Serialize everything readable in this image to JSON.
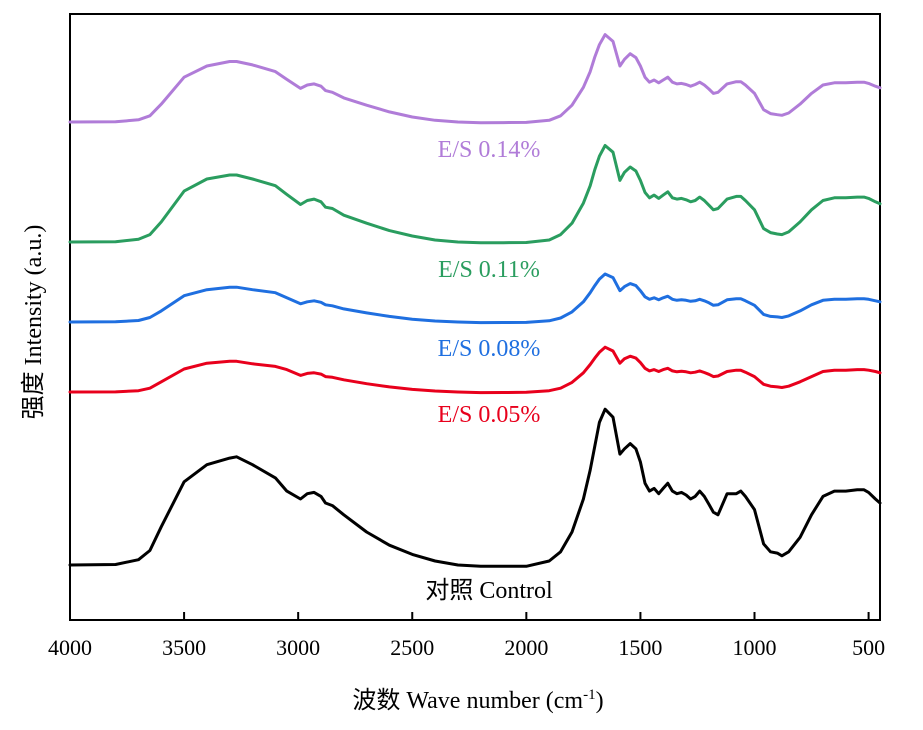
{
  "chart_data": {
    "type": "line",
    "xlabel": "波数 Wave number (cm",
    "xlabel_sup": "-1",
    "xlabel_suffix": ")",
    "ylabel": "强度 Intensity (a.u.)",
    "xlim": [
      4000,
      450
    ],
    "x_reversed": true,
    "y_ticks_shown": false,
    "grid": false,
    "legend": "inline labels above each trace",
    "x_ticks": [
      4000,
      3500,
      3000,
      2500,
      2000,
      1500,
      1000,
      500
    ],
    "x": [
      4000,
      3800,
      3700,
      3650,
      3600,
      3500,
      3400,
      3300,
      3270,
      3200,
      3100,
      3050,
      2990,
      2960,
      2930,
      2900,
      2880,
      2850,
      2800,
      2700,
      2600,
      2500,
      2400,
      2300,
      2200,
      2100,
      2000,
      1900,
      1850,
      1800,
      1750,
      1720,
      1700,
      1680,
      1655,
      1620,
      1590,
      1570,
      1545,
      1520,
      1500,
      1480,
      1460,
      1440,
      1420,
      1400,
      1380,
      1360,
      1340,
      1320,
      1300,
      1280,
      1260,
      1240,
      1220,
      1200,
      1180,
      1160,
      1120,
      1080,
      1060,
      1040,
      1000,
      960,
      930,
      900,
      880,
      850,
      800,
      750,
      700,
      650,
      600,
      550,
      520,
      500,
      470,
      450
    ],
    "series": [
      {
        "name": "对照 Control",
        "color": "#000000",
        "values": [
          0.0,
          0.004,
          0.04,
          0.11,
          0.29,
          0.63,
          0.76,
          0.81,
          0.82,
          0.76,
          0.66,
          0.56,
          0.5,
          0.54,
          0.55,
          0.52,
          0.47,
          0.45,
          0.38,
          0.25,
          0.15,
          0.08,
          0.03,
          0.0,
          -0.01,
          -0.01,
          -0.01,
          0.03,
          0.1,
          0.25,
          0.5,
          0.72,
          0.9,
          1.08,
          1.18,
          1.12,
          0.84,
          0.88,
          0.92,
          0.88,
          0.78,
          0.62,
          0.56,
          0.58,
          0.54,
          0.58,
          0.62,
          0.56,
          0.54,
          0.55,
          0.53,
          0.5,
          0.52,
          0.56,
          0.52,
          0.46,
          0.4,
          0.38,
          0.54,
          0.54,
          0.56,
          0.52,
          0.42,
          0.16,
          0.1,
          0.09,
          0.07,
          0.1,
          0.21,
          0.38,
          0.52,
          0.56,
          0.56,
          0.57,
          0.57,
          0.55,
          0.5,
          0.47
        ]
      },
      {
        "name": "E/S 0.05%",
        "color": "#e8001c",
        "values": [
          0.0,
          0.001,
          0.01,
          0.03,
          0.08,
          0.18,
          0.225,
          0.24,
          0.24,
          0.22,
          0.2,
          0.175,
          0.13,
          0.145,
          0.15,
          0.14,
          0.12,
          0.115,
          0.095,
          0.065,
          0.04,
          0.02,
          0.008,
          0.0,
          -0.005,
          -0.004,
          -0.002,
          0.01,
          0.03,
          0.075,
          0.15,
          0.215,
          0.265,
          0.31,
          0.35,
          0.32,
          0.225,
          0.26,
          0.28,
          0.265,
          0.23,
          0.185,
          0.165,
          0.175,
          0.16,
          0.175,
          0.185,
          0.165,
          0.158,
          0.162,
          0.158,
          0.15,
          0.155,
          0.165,
          0.152,
          0.138,
          0.12,
          0.125,
          0.16,
          0.17,
          0.17,
          0.155,
          0.12,
          0.06,
          0.045,
          0.04,
          0.035,
          0.045,
          0.08,
          0.12,
          0.16,
          0.17,
          0.17,
          0.175,
          0.175,
          0.17,
          0.16,
          0.15
        ]
      },
      {
        "name": "E/S 0.08%",
        "color": "#1f6fe0",
        "values": [
          0.0,
          0.002,
          0.015,
          0.045,
          0.11,
          0.26,
          0.32,
          0.345,
          0.345,
          0.32,
          0.29,
          0.24,
          0.18,
          0.2,
          0.21,
          0.195,
          0.17,
          0.16,
          0.13,
          0.09,
          0.055,
          0.028,
          0.01,
          0.0,
          -0.006,
          -0.005,
          -0.004,
          0.012,
          0.04,
          0.1,
          0.2,
          0.29,
          0.36,
          0.425,
          0.475,
          0.44,
          0.31,
          0.35,
          0.38,
          0.36,
          0.31,
          0.25,
          0.225,
          0.24,
          0.22,
          0.24,
          0.255,
          0.225,
          0.215,
          0.22,
          0.215,
          0.205,
          0.21,
          0.225,
          0.21,
          0.19,
          0.165,
          0.17,
          0.22,
          0.23,
          0.23,
          0.21,
          0.165,
          0.075,
          0.055,
          0.05,
          0.045,
          0.06,
          0.11,
          0.17,
          0.215,
          0.225,
          0.225,
          0.23,
          0.23,
          0.225,
          0.21,
          0.2
        ]
      },
      {
        "name": "E/S 0.11%",
        "color": "#2a9d5f",
        "values": [
          0.0,
          0.002,
          0.02,
          0.055,
          0.15,
          0.38,
          0.47,
          0.5,
          0.5,
          0.47,
          0.42,
          0.355,
          0.28,
          0.31,
          0.32,
          0.3,
          0.26,
          0.25,
          0.2,
          0.14,
          0.085,
          0.045,
          0.015,
          0.0,
          -0.006,
          -0.005,
          -0.004,
          0.015,
          0.055,
          0.14,
          0.29,
          0.42,
          0.54,
          0.64,
          0.72,
          0.67,
          0.46,
          0.52,
          0.56,
          0.53,
          0.46,
          0.37,
          0.33,
          0.35,
          0.325,
          0.35,
          0.375,
          0.33,
          0.32,
          0.325,
          0.315,
          0.3,
          0.31,
          0.335,
          0.31,
          0.275,
          0.24,
          0.25,
          0.32,
          0.34,
          0.34,
          0.31,
          0.24,
          0.1,
          0.07,
          0.06,
          0.055,
          0.075,
          0.15,
          0.24,
          0.31,
          0.33,
          0.33,
          0.335,
          0.335,
          0.325,
          0.3,
          0.285
        ]
      },
      {
        "name": "E/S 0.14%",
        "color": "#b07cd8",
        "values": [
          0.0,
          0.002,
          0.02,
          0.055,
          0.16,
          0.4,
          0.5,
          0.54,
          0.54,
          0.51,
          0.45,
          0.38,
          0.3,
          0.33,
          0.34,
          0.32,
          0.28,
          0.265,
          0.215,
          0.15,
          0.09,
          0.045,
          0.015,
          0.0,
          -0.006,
          -0.005,
          -0.004,
          0.015,
          0.055,
          0.15,
          0.31,
          0.45,
          0.58,
          0.69,
          0.78,
          0.72,
          0.5,
          0.56,
          0.61,
          0.575,
          0.5,
          0.4,
          0.355,
          0.375,
          0.35,
          0.375,
          0.4,
          0.355,
          0.34,
          0.345,
          0.335,
          0.32,
          0.335,
          0.355,
          0.33,
          0.295,
          0.255,
          0.265,
          0.34,
          0.36,
          0.36,
          0.33,
          0.255,
          0.11,
          0.075,
          0.065,
          0.06,
          0.08,
          0.16,
          0.255,
          0.33,
          0.35,
          0.35,
          0.355,
          0.355,
          0.345,
          0.32,
          0.305
        ]
      }
    ]
  }
}
